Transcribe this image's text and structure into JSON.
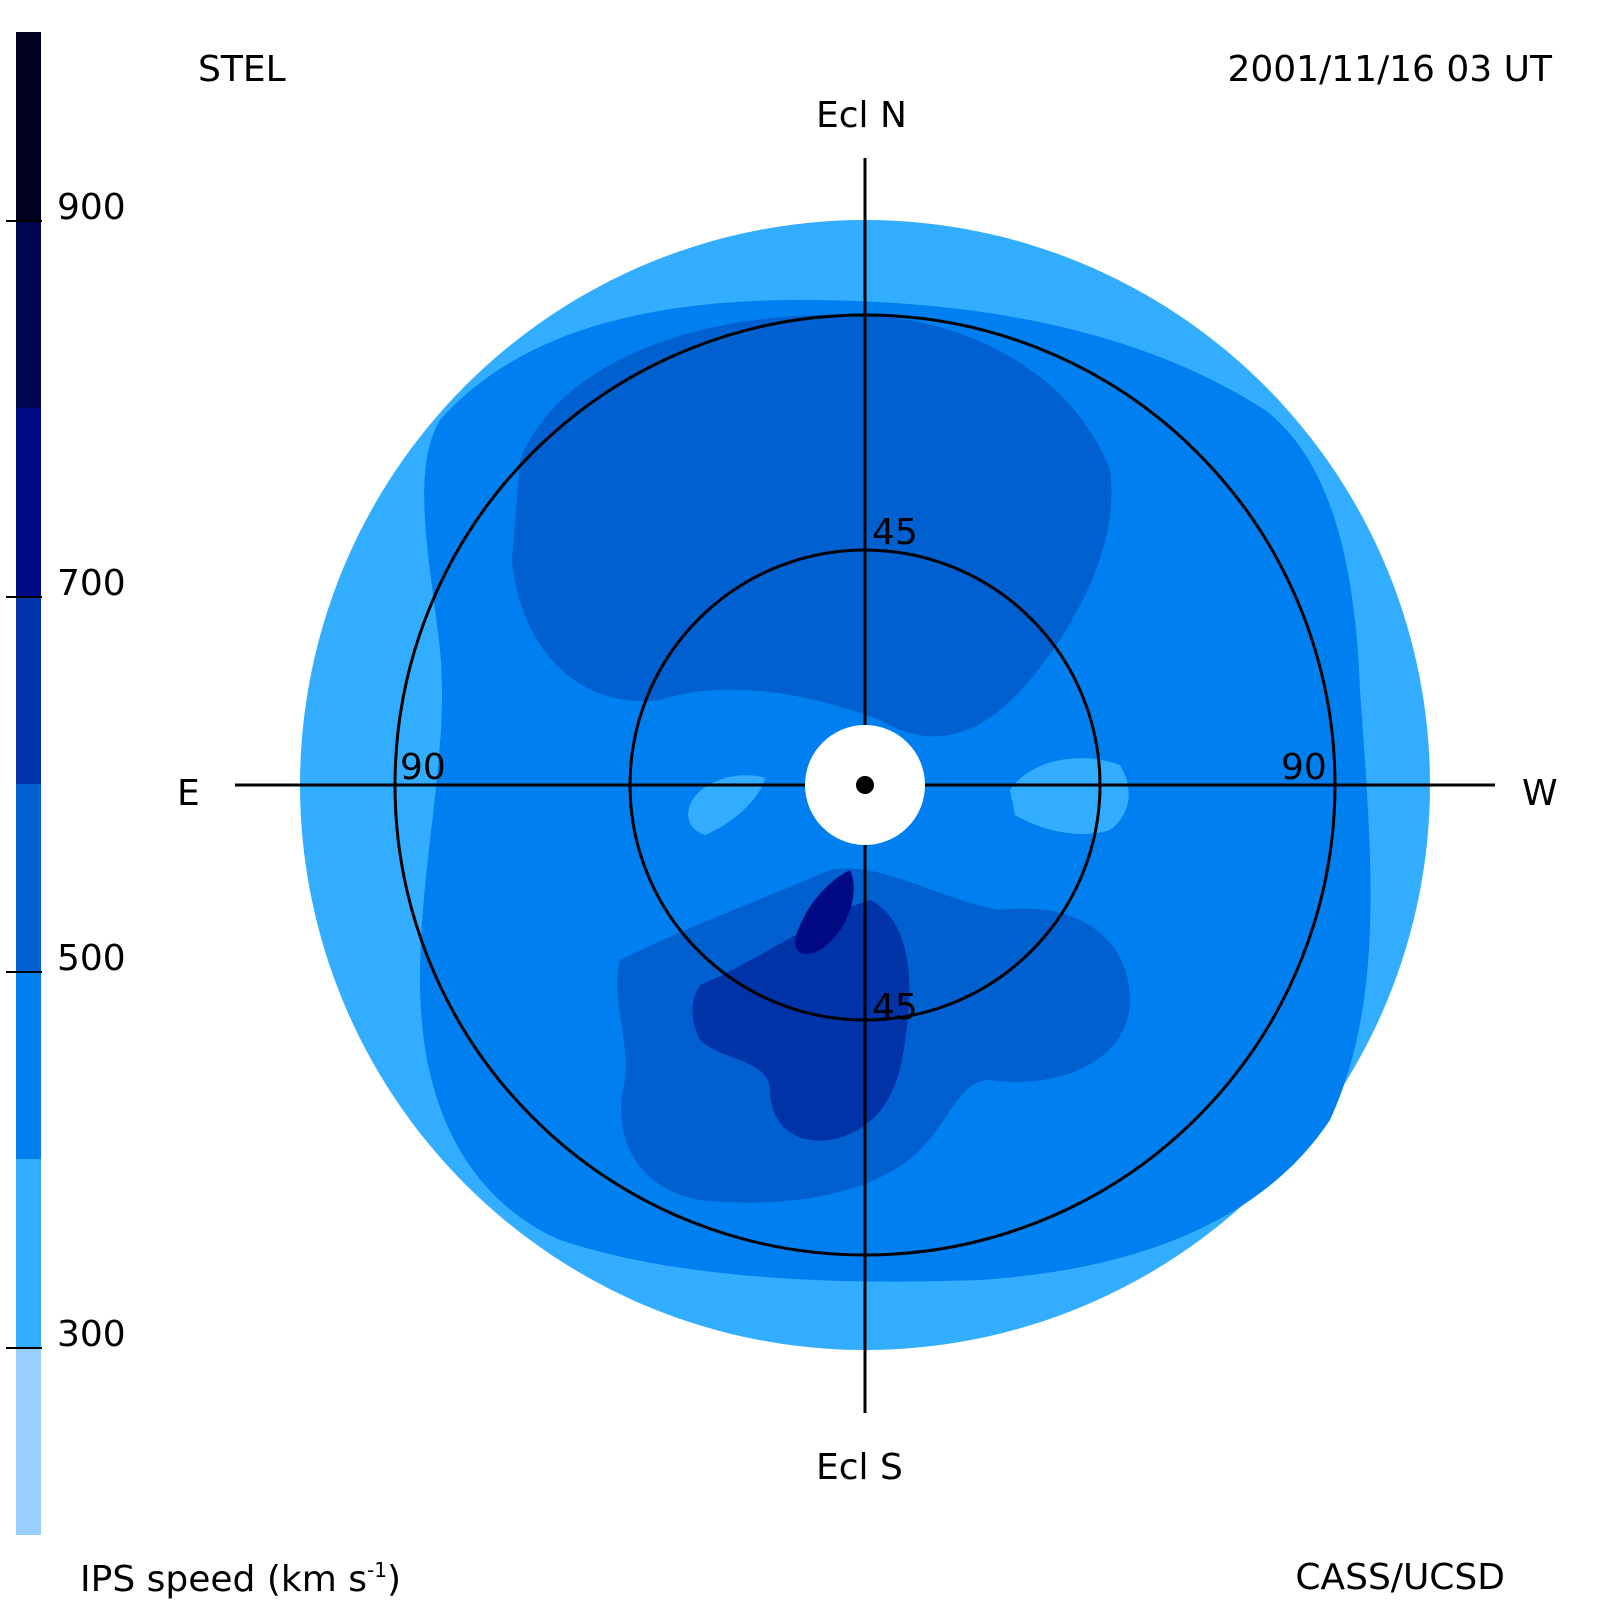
{
  "header": {
    "station": "STEL",
    "datetime": "2001/11/16 03 UT"
  },
  "footer": {
    "credit": "CASS/UCSD",
    "colorbar_title_prefix": "IPS speed (km s",
    "colorbar_title_exp": "-1",
    "colorbar_title_suffix": ")"
  },
  "directions": {
    "north": "Ecl N",
    "south": "Ecl S",
    "east": "E",
    "west": "W"
  },
  "ring_labels": {
    "inner_top": "45",
    "inner_bottom": "45",
    "outer_left": "90",
    "outer_right": "90"
  },
  "colorbar": {
    "min": 200,
    "max": 1000,
    "tick_labels": [
      "900",
      "700",
      "500",
      "300"
    ],
    "bands": [
      {
        "from": 200,
        "to": 300,
        "color": "#99D0FF"
      },
      {
        "from": 300,
        "to": 400,
        "color": "#33ADFF"
      },
      {
        "from": 400,
        "to": 500,
        "color": "#0080F0"
      },
      {
        "from": 500,
        "to": 600,
        "color": "#0060D0"
      },
      {
        "from": 600,
        "to": 700,
        "color": "#0032A8"
      },
      {
        "from": 700,
        "to": 800,
        "color": "#000A82"
      },
      {
        "from": 800,
        "to": 900,
        "color": "#000550"
      },
      {
        "from": 900,
        "to": 1000,
        "color": "#000020"
      }
    ]
  },
  "colors": {
    "slow": "#33ADFF",
    "moderate": "#0080F0",
    "fast": "#0060D0",
    "faster": "#0032A8",
    "fastest": "#000A82",
    "occulter": "#FFFFFF",
    "lines": "#000000"
  }
}
